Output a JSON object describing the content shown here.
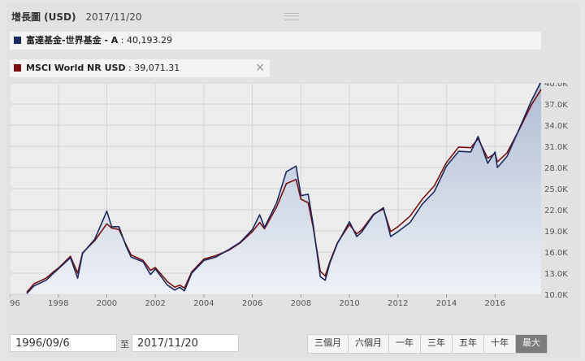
{
  "header": {
    "title": "增長圖 (USD)",
    "date": "2017/11/20"
  },
  "legend": [
    {
      "name": "富達基金-世界基金 - A",
      "value": "40,193.29",
      "color": "#1a2a5e"
    },
    {
      "name": "MSCI World NR USD",
      "value": "39,071.31",
      "color": "#7a1010"
    }
  ],
  "controls": {
    "from_date": "1996/09/6",
    "to_sep": "至",
    "to_date": "2017/11/20",
    "ranges": [
      "三個月",
      "六個月",
      "一年",
      "三年",
      "五年",
      "十年",
      "最大"
    ],
    "active_range": "最大"
  },
  "chart_data": {
    "type": "line",
    "x_tick_labels": [
      "1996",
      "1998",
      "2000",
      "2002",
      "2004",
      "2006",
      "2008",
      "2010",
      "2012",
      "2014",
      "2016"
    ],
    "y_tick_labels": [
      "10.0K",
      "13.0K",
      "16.0K",
      "19.0K",
      "22.0K",
      "25.0K",
      "28.0K",
      "31.0K",
      "34.0K",
      "37.0K",
      "40.0K"
    ],
    "xlim": [
      1996.0,
      2017.9
    ],
    "ylim": [
      10000,
      40000
    ],
    "series": [
      {
        "name": "富達基金-世界基金 - A",
        "color": "#1a2a5e",
        "x": [
          1996.7,
          1997.0,
          1997.5,
          1997.8,
          1998.0,
          1998.5,
          1998.8,
          1999.0,
          1999.5,
          2000.0,
          2000.2,
          2000.5,
          2000.8,
          2001.0,
          2001.5,
          2001.8,
          2002.0,
          2002.5,
          2002.8,
          2003.0,
          2003.2,
          2003.5,
          2004.0,
          2004.5,
          2005.0,
          2005.5,
          2006.0,
          2006.3,
          2006.5,
          2007.0,
          2007.4,
          2007.8,
          2008.0,
          2008.3,
          2008.5,
          2008.8,
          2009.0,
          2009.2,
          2009.5,
          2010.0,
          2010.3,
          2010.5,
          2011.0,
          2011.4,
          2011.7,
          2012.0,
          2012.5,
          2013.0,
          2013.5,
          2014.0,
          2014.5,
          2015.0,
          2015.3,
          2015.7,
          2016.0,
          2016.1,
          2016.5,
          2017.0,
          2017.5,
          2017.9
        ],
        "y": [
          10100,
          11200,
          12000,
          13000,
          13600,
          15200,
          12300,
          15800,
          17800,
          21800,
          19600,
          19600,
          16800,
          15300,
          14600,
          12800,
          13600,
          11300,
          10600,
          11000,
          10500,
          13000,
          14800,
          15300,
          16300,
          17400,
          19200,
          21300,
          19500,
          23000,
          27400,
          28200,
          24000,
          24200,
          20000,
          12500,
          12000,
          14500,
          17200,
          20300,
          18200,
          18800,
          21300,
          22300,
          18200,
          18900,
          20200,
          22800,
          24600,
          28200,
          30300,
          30200,
          32400,
          28600,
          30200,
          28000,
          29600,
          33500,
          37500,
          40193
        ]
      },
      {
        "name": "MSCI World NR USD",
        "color": "#7a1010",
        "x": [
          1996.7,
          1997.0,
          1997.5,
          1997.8,
          1998.0,
          1998.5,
          1998.8,
          1999.0,
          1999.5,
          2000.0,
          2000.2,
          2000.5,
          2000.8,
          2001.0,
          2001.5,
          2001.8,
          2002.0,
          2002.5,
          2002.8,
          2003.0,
          2003.2,
          2003.5,
          2004.0,
          2004.5,
          2005.0,
          2005.5,
          2006.0,
          2006.3,
          2006.5,
          2007.0,
          2007.4,
          2007.8,
          2008.0,
          2008.3,
          2008.5,
          2008.8,
          2009.0,
          2009.2,
          2009.5,
          2010.0,
          2010.3,
          2010.5,
          2011.0,
          2011.4,
          2011.7,
          2012.0,
          2012.5,
          2013.0,
          2013.5,
          2014.0,
          2014.5,
          2015.0,
          2015.3,
          2015.7,
          2016.0,
          2016.1,
          2016.5,
          2017.0,
          2017.5,
          2017.9
        ],
        "y": [
          10300,
          11500,
          12300,
          13200,
          13700,
          15400,
          13000,
          15900,
          17600,
          20000,
          19400,
          19200,
          17000,
          15600,
          14800,
          13400,
          13800,
          11800,
          11000,
          11300,
          10900,
          13200,
          15000,
          15500,
          16200,
          17300,
          18900,
          20200,
          19300,
          22400,
          25700,
          26300,
          23500,
          23000,
          19600,
          13300,
          12600,
          14700,
          17300,
          19900,
          18600,
          19100,
          21400,
          22100,
          18900,
          19600,
          21100,
          23500,
          25400,
          28700,
          30900,
          30800,
          32100,
          29300,
          30000,
          28800,
          30100,
          33400,
          36900,
          39071
        ]
      }
    ]
  }
}
